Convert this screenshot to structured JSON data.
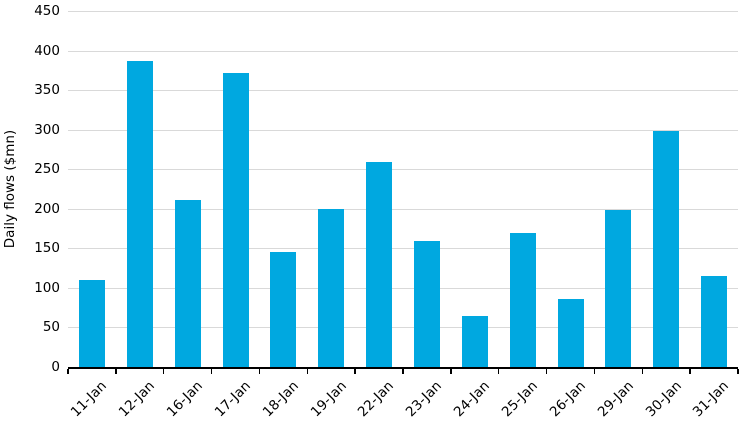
{
  "chart_data": {
    "type": "bar",
    "title": "",
    "xlabel": "",
    "ylabel": "Daily flows ($mn)",
    "categories": [
      "11-Jan",
      "12-Jan",
      "16-Jan",
      "17-Jan",
      "18-Jan",
      "19-Jan",
      "22-Jan",
      "23-Jan",
      "24-Jan",
      "25-Jan",
      "26-Jan",
      "29-Jan",
      "30-Jan",
      "31-Jan"
    ],
    "values": [
      110,
      387,
      211,
      372,
      145,
      200,
      259,
      159,
      65,
      170,
      86,
      198,
      298,
      115
    ],
    "ylim": [
      0,
      450
    ],
    "yticks": [
      0,
      50,
      100,
      150,
      200,
      250,
      300,
      350,
      400,
      450
    ],
    "grid": "horizontal-only",
    "legend": "none",
    "x_label_rotation_deg": 45,
    "colors": {
      "bar": "#00A8E0",
      "gridline": "#D9D9D9",
      "axis": "#000000",
      "text": "#000000",
      "background": "#FFFFFF"
    }
  }
}
